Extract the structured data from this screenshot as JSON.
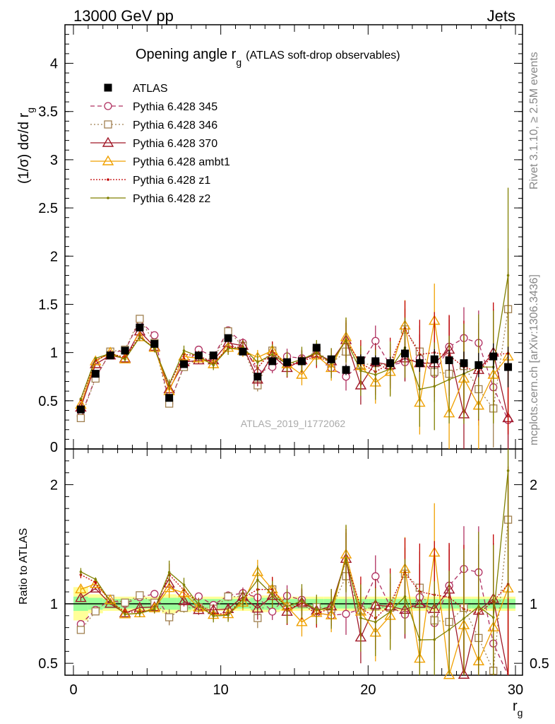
{
  "header": {
    "left": "13000 GeV pp",
    "right": "Jets",
    "side_top": "Rivet 3.1.10, ≥ 2.5M events",
    "side_bottom": "mcplots.cern.ch [arXiv:1306.3436]",
    "watermark": "ATLAS_2019_I1772062"
  },
  "chart_data": [
    {
      "type": "line",
      "title": "Opening angle r_g (ATLAS soft-drop observables)",
      "title_main": "Opening angle r",
      "title_sub": "g",
      "title_tail": "(ATLAS soft-drop observables)",
      "ylabel": "(1/σ) dσ/d r_g",
      "ylabel_main": "(1/σ) dσ/d r",
      "ylabel_sub": "g",
      "xlim": [
        -0.5,
        30.5
      ],
      "ylim": [
        0,
        4.4
      ],
      "yticks": [
        "0.5",
        "1",
        "1.5",
        "2",
        "2.5",
        "3",
        "3.5",
        "4"
      ],
      "ytick_values": [
        0.5,
        1,
        1.5,
        2,
        2.5,
        3,
        3.5,
        4
      ],
      "y_zero_label": "0",
      "x": [
        0.5,
        1.5,
        2.5,
        3.5,
        4.5,
        5.5,
        6.5,
        7.5,
        8.5,
        9.5,
        10.5,
        11.5,
        12.5,
        13.5,
        14.5,
        15.5,
        16.5,
        17.5,
        18.5,
        19.5,
        20.5,
        21.5,
        22.5,
        23.5,
        24.5,
        25.5,
        26.5,
        27.5,
        28.5,
        29.5
      ],
      "legend": [
        {
          "label": "ATLAS",
          "style": "data"
        },
        {
          "label": "Pythia 6.428 345",
          "style": "circle-dashed"
        },
        {
          "label": "Pythia 6.428 346",
          "style": "square-dotted"
        },
        {
          "label": "Pythia 6.428 370",
          "style": "triangle-solid"
        },
        {
          "label": "Pythia 6.428 ambt1",
          "style": "triangle-solid"
        },
        {
          "label": "Pythia 6.428 z1",
          "style": "dot-dotted"
        },
        {
          "label": "Pythia 6.428 z2",
          "style": "dot-solid"
        }
      ],
      "series": [
        {
          "name": "ATLAS",
          "color": "#000000",
          "marker": "square",
          "values": [
            0.41,
            0.78,
            0.97,
            1.02,
            1.26,
            1.09,
            0.53,
            0.88,
            0.97,
            0.97,
            1.15,
            1.01,
            0.75,
            0.91,
            0.9,
            0.91,
            1.05,
            0.93,
            0.82,
            0.92,
            0.91,
            0.89,
            0.99,
            0.89,
            0.93,
            0.92,
            0.89,
            0.87,
            0.96,
            0.85
          ]
        },
        {
          "name": "Pythia 6.428 345",
          "color": "#b03060",
          "marker": "circle",
          "dash": "6,4",
          "values": [
            0.34,
            0.74,
            1.0,
            1.02,
            1.33,
            1.18,
            0.47,
            0.86,
            1.03,
            0.96,
            1.23,
            1.1,
            0.79,
            0.85,
            0.96,
            0.94,
            0.97,
            0.84,
            0.75,
            0.88,
            1.12,
            0.87,
            0.9,
            0.94,
            0.78,
            1.06,
            1.15,
            1.1,
            0.64,
            0.3
          ]
        },
        {
          "name": "Pythia 6.428 346",
          "color": "#a08050",
          "marker": "square",
          "dash": "2,3",
          "values": [
            0.32,
            0.73,
            1.01,
            1.03,
            1.35,
            1.1,
            0.47,
            0.85,
            0.94,
            0.93,
            1.22,
            1.07,
            0.66,
            1.02,
            0.88,
            0.91,
            1.02,
            0.89,
            1.01,
            0.87,
            0.89,
            0.86,
            1.24,
            1.01,
            0.8,
            0.78,
            0.86,
            0.62,
            0.42,
            1.45
          ]
        },
        {
          "name": "Pythia 6.428 370",
          "color": "#a01828",
          "marker": "triangle",
          "values": [
            0.43,
            0.88,
            0.97,
            0.94,
            1.22,
            1.06,
            0.62,
            0.9,
            0.92,
            0.92,
            1.1,
            1.07,
            0.72,
            0.97,
            0.84,
            0.92,
            0.99,
            0.91,
            1.13,
            0.66,
            0.9,
            0.87,
            0.94,
            0.89,
            0.89,
            1.03,
            0.36,
            0.82,
            1.0,
            0.32
          ]
        },
        {
          "name": "Pythia 6.428 ambt1",
          "color": "#f0a000",
          "marker": "triangle",
          "values": [
            0.46,
            0.91,
            1.0,
            0.93,
            1.16,
            1.05,
            0.6,
            0.96,
            0.94,
            0.88,
            1.05,
            1.02,
            0.95,
            1.02,
            0.88,
            0.77,
            0.97,
            0.84,
            1.16,
            0.86,
            0.69,
            0.8,
            1.28,
            0.48,
            1.33,
            0.37,
            0.73,
            0.45,
            0.77,
            0.96
          ]
        },
        {
          "name": "Pythia 6.428 z1",
          "color": "#c00000",
          "marker": "dot",
          "dash": "2,2",
          "values": [
            0.51,
            0.92,
            0.99,
            0.95,
            1.17,
            1.04,
            0.66,
            0.98,
            0.97,
            0.89,
            1.05,
            1.06,
            0.84,
            1.02,
            0.86,
            0.91,
            0.96,
            0.9,
            1.12,
            0.89,
            0.8,
            0.89,
            1.25,
            0.98,
            1.0,
            0.97,
            0.85,
            0.8,
            0.98,
            0.99
          ]
        },
        {
          "name": "Pythia 6.428 z2",
          "color": "#808000",
          "marker": "dot",
          "values": [
            0.52,
            0.94,
            0.99,
            0.93,
            1.16,
            1.04,
            0.67,
            1.02,
            0.96,
            0.87,
            1.04,
            1.05,
            0.9,
            0.98,
            0.88,
            0.93,
            1.0,
            0.89,
            1.13,
            0.81,
            0.77,
            0.83,
            1.05,
            0.62,
            0.65,
            0.72,
            0.78,
            0.85,
            0.85,
            1.8
          ]
        }
      ],
      "errors": [
        0.01,
        0.01,
        0.01,
        0.02,
        0.03,
        0.03,
        0.04,
        0.04,
        0.04,
        0.04,
        0.05,
        0.06,
        0.07,
        0.08,
        0.1,
        0.1,
        0.1,
        0.12,
        0.18,
        0.2,
        0.2,
        0.22,
        0.24,
        0.3,
        0.35,
        0.35,
        0.4,
        0.42,
        0.45,
        0.7
      ]
    },
    {
      "type": "line",
      "ylabel": "Ratio to ATLAS",
      "xlabel": "r_g",
      "xlabel_main": "r",
      "xlabel_sub": "g",
      "xlim": [
        -0.5,
        30.5
      ],
      "ylim": [
        0.4,
        2.3
      ],
      "yticks": [
        "0.5",
        "1",
        "2"
      ],
      "ytick_values": [
        0.5,
        1,
        2
      ],
      "xticks": [
        "0",
        "10",
        "20",
        "30"
      ],
      "xtick_values": [
        0,
        10,
        20,
        30
      ],
      "band_inner": [
        0.06,
        0.05,
        0.04,
        0.04,
        0.04,
        0.04,
        0.05,
        0.05,
        0.04,
        0.04,
        0.04,
        0.04,
        0.05,
        0.05,
        0.04,
        0.04,
        0.04,
        0.04,
        0.04,
        0.04,
        0.04,
        0.04,
        0.04,
        0.04,
        0.04,
        0.04,
        0.04,
        0.04,
        0.04,
        0.04
      ],
      "band_outer": [
        0.14,
        0.08,
        0.06,
        0.06,
        0.06,
        0.06,
        0.08,
        0.07,
        0.06,
        0.06,
        0.06,
        0.06,
        0.07,
        0.07,
        0.06,
        0.06,
        0.06,
        0.06,
        0.06,
        0.06,
        0.06,
        0.06,
        0.06,
        0.06,
        0.06,
        0.06,
        0.06,
        0.06,
        0.06,
        0.06
      ]
    }
  ]
}
